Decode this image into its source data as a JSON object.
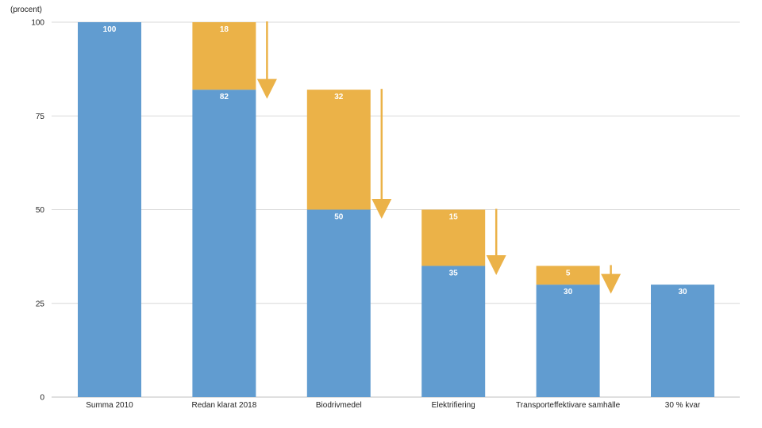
{
  "chart_data": {
    "type": "bar",
    "stacked": true,
    "unit_label": "(procent)",
    "categories": [
      "Summa 2010",
      "Redan klarat 2018",
      "Biodrivmedel",
      "Elektrifiering",
      "Transporteffektivare samhälle",
      "30 % kvar"
    ],
    "series": [
      {
        "values": [
          100,
          82,
          50,
          35,
          30,
          30
        ]
      },
      {
        "values": [
          0,
          18,
          32,
          15,
          5,
          0
        ]
      }
    ],
    "ylim": [
      0,
      100
    ],
    "yticks": [
      0,
      25,
      50,
      75,
      100
    ],
    "grid": true,
    "colors": {
      "remaining": "#619cd0",
      "reduction": "#ebb248",
      "arrow": "#ebb248",
      "grid": "#d9d9d9",
      "axis": "#bfbfbf"
    }
  }
}
